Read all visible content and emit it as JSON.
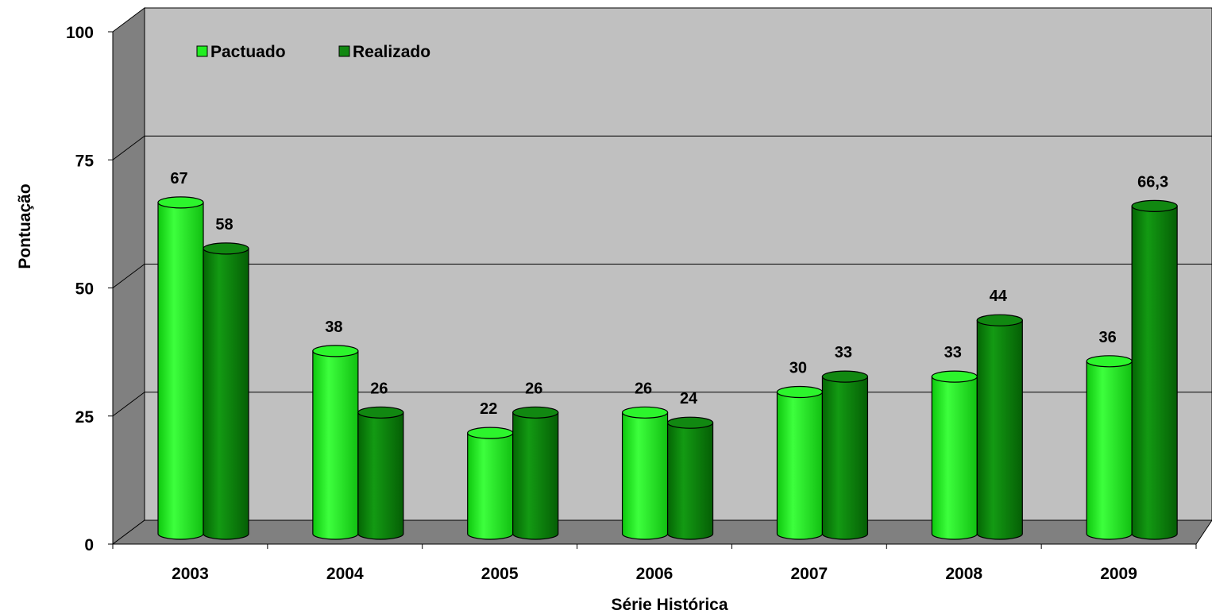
{
  "chart_data": {
    "type": "bar",
    "title": "",
    "xlabel": "Série Histórica",
    "ylabel": "Pontuação",
    "ylim": [
      0,
      100
    ],
    "yticks": [
      "0",
      "25",
      "50",
      "75",
      "100"
    ],
    "categories": [
      "2003",
      "2004",
      "2005",
      "2006",
      "2007",
      "2008",
      "2009"
    ],
    "series": [
      {
        "name": "Pactuado",
        "values": [
          67,
          38,
          22,
          26,
          30,
          33,
          36
        ],
        "labels": [
          "67",
          "38",
          "22",
          "26",
          "30",
          "33",
          "36"
        ],
        "color": "#22ee22"
      },
      {
        "name": "Realizado",
        "values": [
          58,
          26,
          26,
          24,
          33,
          44,
          66.3
        ],
        "labels": [
          "58",
          "26",
          "26",
          "24",
          "33",
          "44",
          "66,3"
        ],
        "color": "#118811"
      }
    ],
    "legend": "top-left",
    "grid": true,
    "style": "3d-cylinder"
  }
}
